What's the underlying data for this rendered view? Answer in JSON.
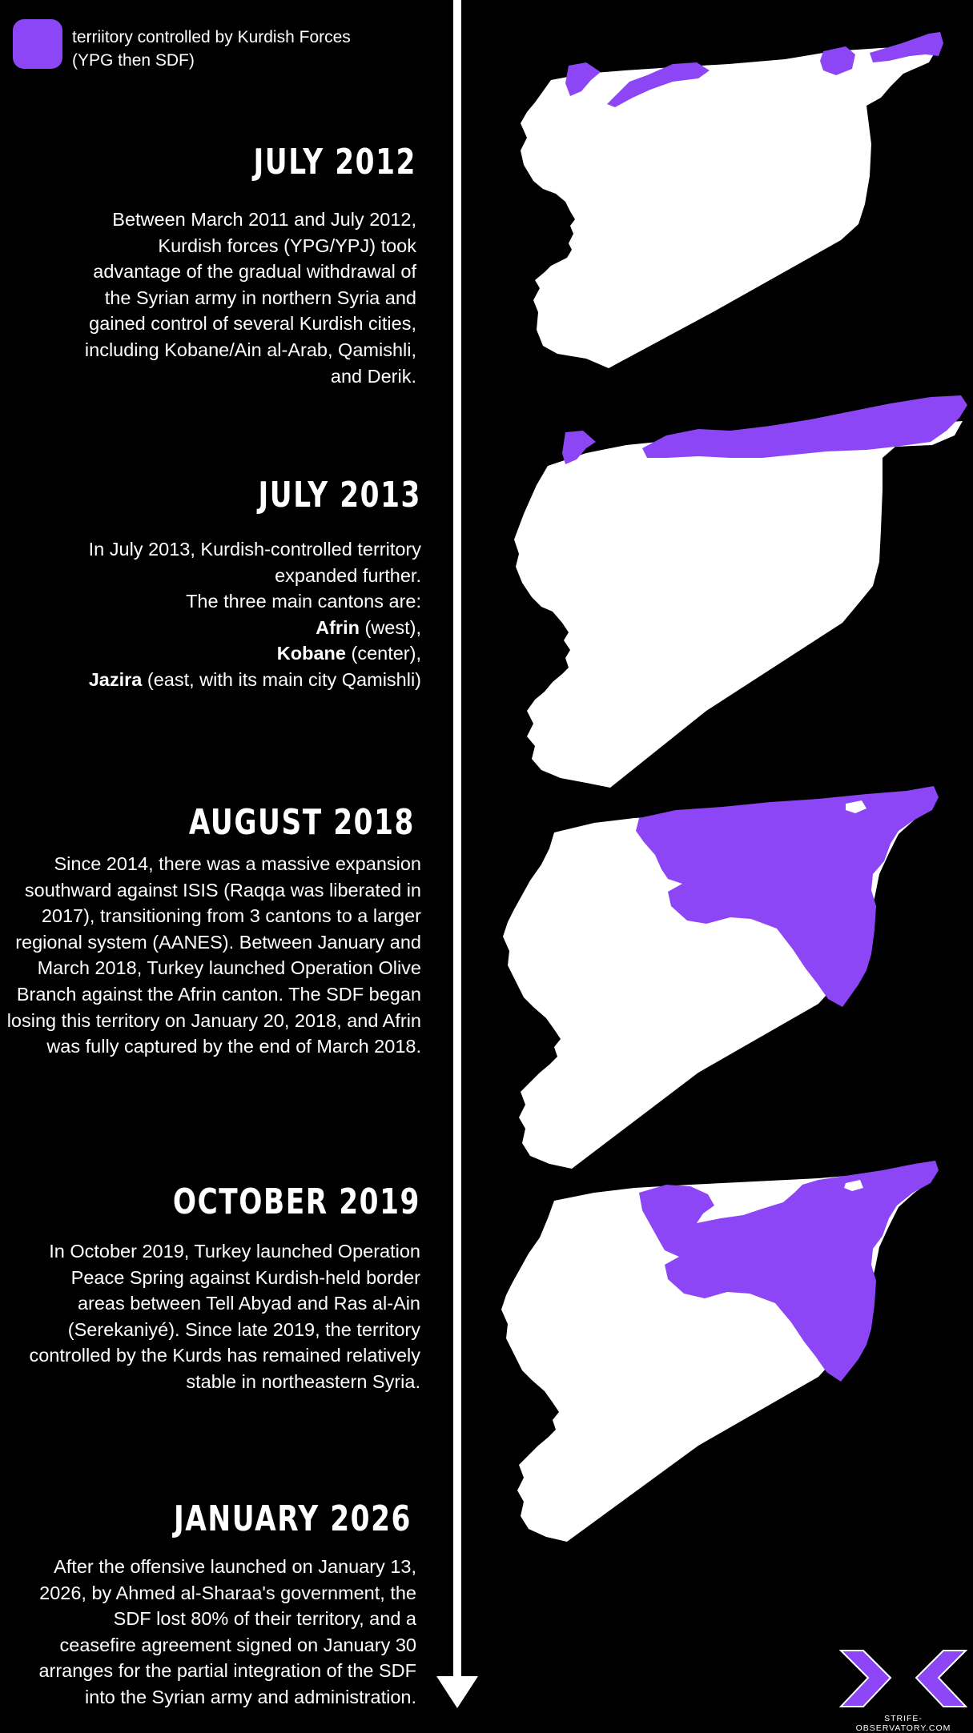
{
  "legend": {
    "line1": "terriitory controlled by Kurdish Forces",
    "line2": "(YPG then SDF)",
    "color": "#8c46f5"
  },
  "entries": [
    {
      "title": "JULY 2012",
      "lines": [
        "Between March 2011 and July 2012,",
        "Kurdish forces (YPG/YPJ) took",
        "advantage of the gradual withdrawal of",
        "the Syrian army in northern Syria and",
        "gained control of several Kurdish cities,",
        "including Kobane/Ain al-Arab, Qamishli,",
        "and Derik."
      ]
    },
    {
      "title": "JULY 2013",
      "lines": [
        "In July 2013, Kurdish-controlled territory",
        "expanded further.",
        "The three main cantons are:"
      ],
      "cantons": [
        {
          "name": "Afrin",
          "desc": " (west),"
        },
        {
          "name": "Kobane",
          "desc": " (center),"
        },
        {
          "name": "Jazira",
          "desc": " (east, with its main city Qamishli)"
        }
      ]
    },
    {
      "title": "AUGUST 2018",
      "lines": [
        "Since 2014, there was a massive expansion",
        "southward against ISIS (Raqqa was liberated in",
        "2017), transitioning from 3 cantons to a larger",
        "regional system (AANES). Between January and",
        "March 2018, Turkey launched Operation Olive",
        "Branch against the Afrin canton. The SDF began",
        "losing this territory on January 20, 2018, and Afrin",
        "was fully captured by the end of March 2018."
      ]
    },
    {
      "title": "OCTOBER 2019",
      "lines": [
        "In October 2019, Turkey launched Operation",
        "Peace Spring against Kurdish-held border",
        "areas between Tell Abyad and Ras al-Ain",
        "(Serekaniyé). Since late 2019, the territory",
        "controlled by the Kurds has remained relatively",
        "stable in northeastern Syria."
      ]
    },
    {
      "title": "JANUARY 2026",
      "lines": [
        "After the offensive launched on January 13,",
        "2026, by Ahmed al-Sharaa's government, the",
        "SDF lost 80% of their territory, and a",
        "ceasefire agreement signed on January 30",
        "arranges for the partial integration of the SDF",
        "into the Syrian army and administration."
      ]
    }
  ],
  "footer": {
    "url": "STRIFE-OBSERVATORY.COM"
  },
  "colors": {
    "background": "#000000",
    "accent": "#8c46f5",
    "text": "#ffffff"
  }
}
